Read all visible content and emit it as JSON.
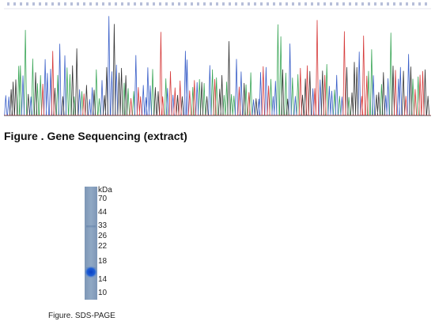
{
  "sequencing": {
    "caption": "Figure . Gene Sequencing (extract)",
    "base_colors": {
      "A": "#3aa657",
      "C": "#3a5fc8",
      "G": "#333333",
      "T": "#d63a3a"
    },
    "header_color": "#b7bfd9"
  },
  "gel": {
    "caption": "Figure. SDS-PAGE",
    "unit": "kDa",
    "markers": [
      "70",
      "44",
      "33",
      "26",
      "22",
      "18",
      "14",
      "10"
    ],
    "lane_color": "#8fa8c4",
    "band_color": "#1f5fd4"
  }
}
